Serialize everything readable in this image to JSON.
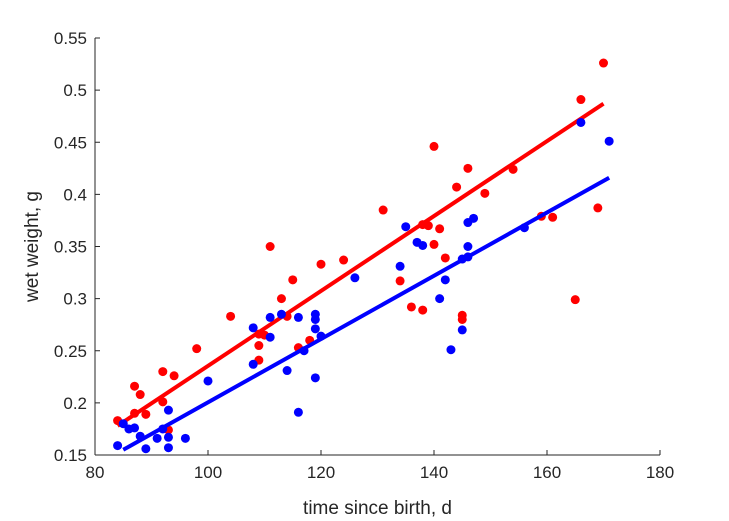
{
  "chart_data": {
    "type": "scatter",
    "title": "",
    "xlabel": "time since birth, d",
    "ylabel": "wet weight, g",
    "xlim": [
      80,
      180
    ],
    "ylim": [
      0.15,
      0.55
    ],
    "xticks": [
      "80",
      "100",
      "120",
      "140",
      "160",
      "180"
    ],
    "yticks": [
      "0.15",
      "0.2",
      "0.25",
      "0.3",
      "0.35",
      "0.4",
      "0.45",
      "0.5",
      "0.55"
    ],
    "xtick_values": [
      80,
      100,
      120,
      140,
      160,
      180
    ],
    "ytick_values": [
      0.15,
      0.2,
      0.25,
      0.3,
      0.35,
      0.4,
      0.45,
      0.5,
      0.55
    ],
    "grid": false,
    "legend": "none",
    "series": [
      {
        "color": "#ff0000",
        "points": [
          [
            84,
            0.183
          ],
          [
            87,
            0.216
          ],
          [
            87,
            0.19
          ],
          [
            88,
            0.208
          ],
          [
            89,
            0.189
          ],
          [
            92,
            0.23
          ],
          [
            92,
            0.201
          ],
          [
            93,
            0.174
          ],
          [
            94,
            0.226
          ],
          [
            98,
            0.252
          ],
          [
            104,
            0.283
          ],
          [
            109,
            0.266
          ],
          [
            109,
            0.255
          ],
          [
            109,
            0.241
          ],
          [
            110,
            0.265
          ],
          [
            111,
            0.35
          ],
          [
            113,
            0.3
          ],
          [
            114,
            0.283
          ],
          [
            115,
            0.318
          ],
          [
            116,
            0.253
          ],
          [
            118,
            0.26
          ],
          [
            120,
            0.333
          ],
          [
            124,
            0.337
          ],
          [
            131,
            0.385
          ],
          [
            134,
            0.317
          ],
          [
            136,
            0.292
          ],
          [
            138,
            0.371
          ],
          [
            138,
            0.289
          ],
          [
            139,
            0.37
          ],
          [
            140,
            0.446
          ],
          [
            140,
            0.352
          ],
          [
            141,
            0.367
          ],
          [
            142,
            0.339
          ],
          [
            144,
            0.407
          ],
          [
            145,
            0.284
          ],
          [
            145,
            0.28
          ],
          [
            146,
            0.425
          ],
          [
            149,
            0.401
          ],
          [
            154,
            0.424
          ],
          [
            159,
            0.379
          ],
          [
            161,
            0.378
          ],
          [
            165,
            0.299
          ],
          [
            166,
            0.491
          ],
          [
            169,
            0.387
          ],
          [
            170,
            0.526
          ]
        ],
        "fit": [
          [
            84,
            0.178
          ],
          [
            170,
            0.487
          ]
        ]
      },
      {
        "color": "#0000ff",
        "points": [
          [
            84,
            0.159
          ],
          [
            85,
            0.18
          ],
          [
            86,
            0.175
          ],
          [
            87,
            0.176
          ],
          [
            88,
            0.168
          ],
          [
            89,
            0.156
          ],
          [
            91,
            0.166
          ],
          [
            92,
            0.175
          ],
          [
            93,
            0.193
          ],
          [
            93,
            0.157
          ],
          [
            93,
            0.167
          ],
          [
            96,
            0.166
          ],
          [
            100,
            0.221
          ],
          [
            108,
            0.272
          ],
          [
            108,
            0.237
          ],
          [
            111,
            0.282
          ],
          [
            111,
            0.263
          ],
          [
            113,
            0.285
          ],
          [
            114,
            0.231
          ],
          [
            116,
            0.282
          ],
          [
            116,
            0.191
          ],
          [
            117,
            0.25
          ],
          [
            119,
            0.285
          ],
          [
            119,
            0.28
          ],
          [
            119,
            0.271
          ],
          [
            119,
            0.224
          ],
          [
            120,
            0.264
          ],
          [
            126,
            0.32
          ],
          [
            134,
            0.331
          ],
          [
            135,
            0.369
          ],
          [
            137,
            0.354
          ],
          [
            138,
            0.351
          ],
          [
            141,
            0.3
          ],
          [
            142,
            0.318
          ],
          [
            143,
            0.251
          ],
          [
            145,
            0.338
          ],
          [
            145,
            0.27
          ],
          [
            146,
            0.373
          ],
          [
            146,
            0.35
          ],
          [
            146,
            0.34
          ],
          [
            147,
            0.377
          ],
          [
            156,
            0.368
          ],
          [
            166,
            0.469
          ],
          [
            171,
            0.451
          ]
        ],
        "fit": [
          [
            85,
            0.155
          ],
          [
            171,
            0.416
          ]
        ]
      }
    ]
  }
}
